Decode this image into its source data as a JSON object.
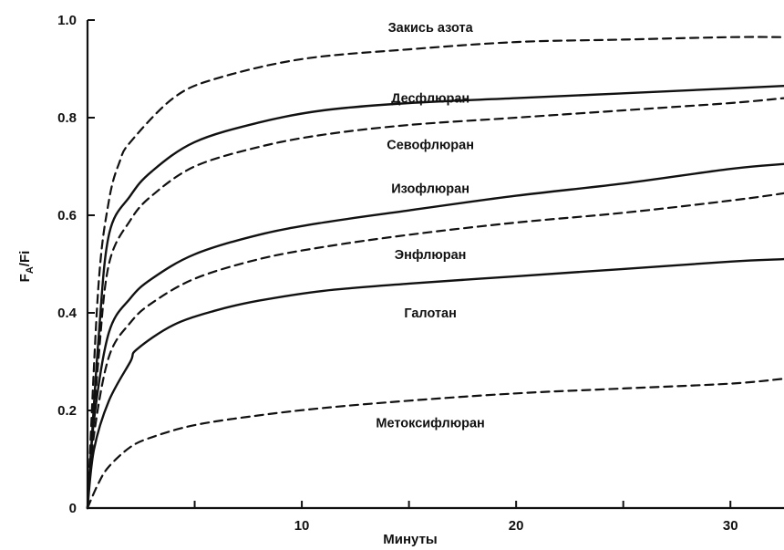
{
  "chart_data": {
    "type": "line",
    "xlabel": "Минуты",
    "ylabel": "FA/Fi",
    "ylabel_main": "F",
    "ylabel_sub": "A",
    "ylabel_rest": "/Fi",
    "xlim": [
      0,
      32.5
    ],
    "ylim": [
      0,
      1.0
    ],
    "x_ticks": [
      0,
      5,
      10,
      15,
      20,
      25,
      30
    ],
    "x_tick_labels": [
      "",
      "",
      "10",
      "",
      "20",
      "",
      "30"
    ],
    "y_ticks": [
      0,
      0.2,
      0.4,
      0.6,
      0.8,
      1.0
    ],
    "y_tick_labels": [
      "0",
      "0.2",
      "0.4",
      "0.6",
      "0.8",
      "1.0"
    ],
    "grid": false,
    "series": [
      {
        "name": "Закись азота",
        "style": "dashed",
        "label_at": [
          16,
          0.985
        ],
        "points": [
          [
            0,
            0
          ],
          [
            0.5,
            0.45
          ],
          [
            1,
            0.63
          ],
          [
            1.5,
            0.71
          ],
          [
            2,
            0.75
          ],
          [
            4,
            0.84
          ],
          [
            6,
            0.88
          ],
          [
            10,
            0.92
          ],
          [
            15,
            0.94
          ],
          [
            20,
            0.955
          ],
          [
            25,
            0.96
          ],
          [
            30,
            0.965
          ],
          [
            32.5,
            0.965
          ]
        ]
      },
      {
        "name": "Десфлюран",
        "style": "solid",
        "label_at": [
          16,
          0.84
        ],
        "points": [
          [
            0,
            0
          ],
          [
            0.5,
            0.34
          ],
          [
            1,
            0.56
          ],
          [
            2,
            0.64
          ],
          [
            3,
            0.69
          ],
          [
            5,
            0.75
          ],
          [
            8,
            0.79
          ],
          [
            11,
            0.815
          ],
          [
            15,
            0.83
          ],
          [
            20,
            0.84
          ],
          [
            25,
            0.85
          ],
          [
            30,
            0.86
          ],
          [
            32.5,
            0.865
          ]
        ]
      },
      {
        "name": "Севофлюран",
        "style": "dashed",
        "label_at": [
          16,
          0.745
        ],
        "points": [
          [
            0,
            0
          ],
          [
            0.5,
            0.3
          ],
          [
            1,
            0.5
          ],
          [
            2,
            0.59
          ],
          [
            3,
            0.64
          ],
          [
            5,
            0.7
          ],
          [
            8,
            0.74
          ],
          [
            11,
            0.765
          ],
          [
            15,
            0.785
          ],
          [
            20,
            0.8
          ],
          [
            25,
            0.815
          ],
          [
            30,
            0.83
          ],
          [
            32.5,
            0.84
          ]
        ]
      },
      {
        "name": "Изофлюран",
        "style": "solid",
        "label_at": [
          16,
          0.655
        ],
        "points": [
          [
            0,
            0
          ],
          [
            0.3,
            0.18
          ],
          [
            1,
            0.36
          ],
          [
            2,
            0.43
          ],
          [
            3,
            0.47
          ],
          [
            5,
            0.52
          ],
          [
            8,
            0.56
          ],
          [
            11,
            0.585
          ],
          [
            15,
            0.61
          ],
          [
            20,
            0.64
          ],
          [
            25,
            0.665
          ],
          [
            30,
            0.695
          ],
          [
            32.5,
            0.705
          ]
        ]
      },
      {
        "name": "Энфлюран",
        "style": "dashed",
        "label_at": [
          16,
          0.52
        ],
        "points": [
          [
            0,
            0
          ],
          [
            0.3,
            0.15
          ],
          [
            1,
            0.31
          ],
          [
            2,
            0.38
          ],
          [
            3,
            0.42
          ],
          [
            5,
            0.47
          ],
          [
            8,
            0.51
          ],
          [
            11,
            0.535
          ],
          [
            15,
            0.56
          ],
          [
            20,
            0.585
          ],
          [
            25,
            0.605
          ],
          [
            30,
            0.63
          ],
          [
            32.5,
            0.645
          ]
        ]
      },
      {
        "name": "Галотан",
        "style": "solid",
        "label_at": [
          16,
          0.4
        ],
        "points": [
          [
            0,
            0
          ],
          [
            0.3,
            0.12
          ],
          [
            1,
            0.22
          ],
          [
            2,
            0.3
          ],
          [
            2.3,
            0.325
          ],
          [
            4,
            0.375
          ],
          [
            6,
            0.405
          ],
          [
            8,
            0.425
          ],
          [
            11,
            0.445
          ],
          [
            15,
            0.46
          ],
          [
            20,
            0.475
          ],
          [
            25,
            0.49
          ],
          [
            30,
            0.505
          ],
          [
            32.5,
            0.51
          ]
        ]
      },
      {
        "name": "Метоксифлюран",
        "style": "dashed",
        "label_at": [
          16,
          0.175
        ],
        "points": [
          [
            0,
            0
          ],
          [
            0.5,
            0.05
          ],
          [
            1,
            0.085
          ],
          [
            2,
            0.125
          ],
          [
            3,
            0.145
          ],
          [
            5,
            0.17
          ],
          [
            8,
            0.19
          ],
          [
            11,
            0.205
          ],
          [
            15,
            0.22
          ],
          [
            20,
            0.235
          ],
          [
            25,
            0.245
          ],
          [
            30,
            0.255
          ],
          [
            32.5,
            0.265
          ]
        ]
      }
    ]
  }
}
